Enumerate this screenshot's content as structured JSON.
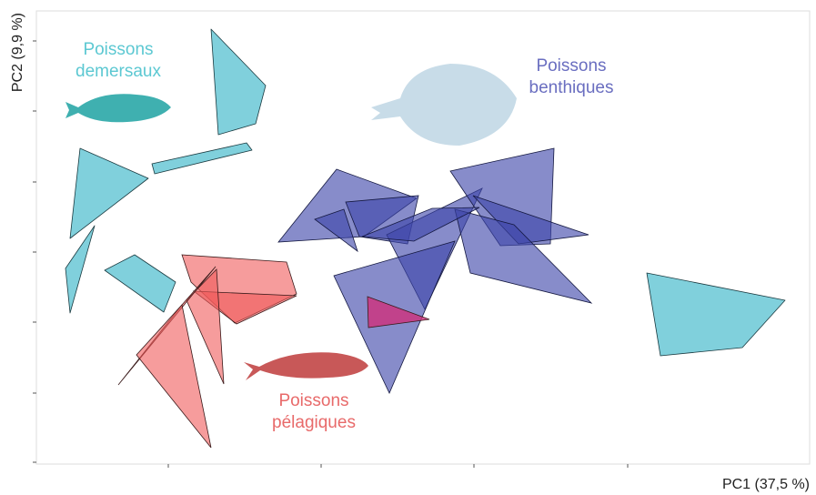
{
  "axes": {
    "x_label": "PC1 (37,5 %)",
    "y_label": "PC2 (9,9 %)"
  },
  "groups": [
    {
      "label_lines": [
        "Poissons",
        "demersaux"
      ]
    },
    {
      "label_lines": [
        "Poissons",
        "benthiques"
      ]
    },
    {
      "label_lines": [
        "Poissons",
        "pélagiques"
      ]
    }
  ]
}
